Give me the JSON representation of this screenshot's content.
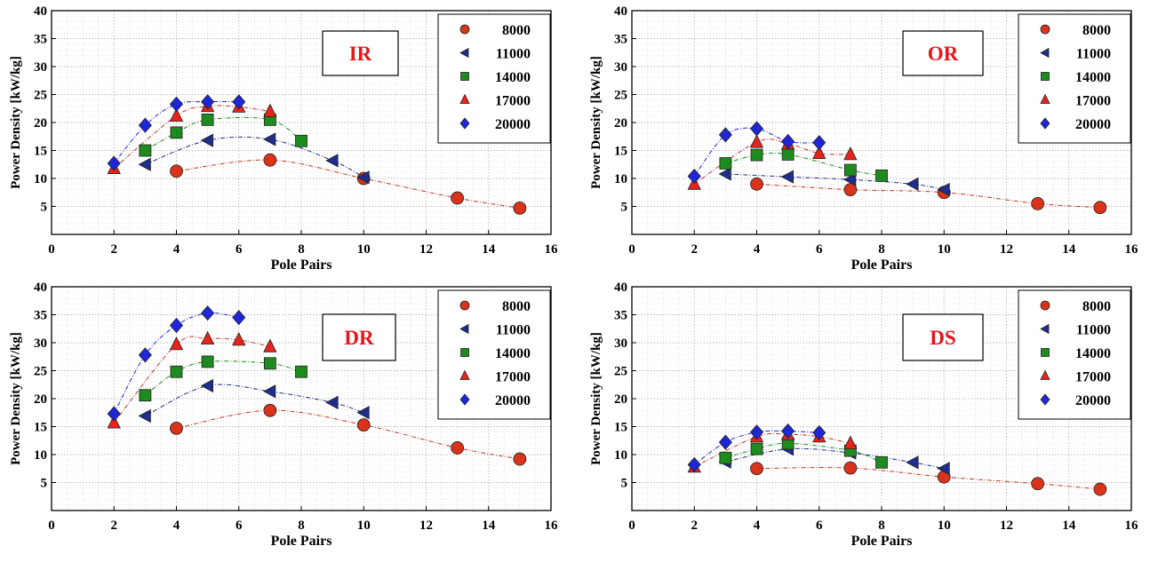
{
  "chart_data": [
    {
      "type": "scatter",
      "title": "IR",
      "xlabel": "Pole Pairs",
      "ylabel": "Power Density [kW/kg]",
      "xlim": [
        0,
        16
      ],
      "ylim": [
        0,
        40
      ],
      "xticks": [
        "0",
        "2",
        "4",
        "6",
        "8",
        "10",
        "12",
        "14",
        "16"
      ],
      "yticks": [
        "5",
        "10",
        "15",
        "20",
        "25",
        "30",
        "35",
        "40"
      ],
      "grid": true,
      "legend_position": "top-right",
      "series": [
        {
          "name": "8000",
          "marker": "circle",
          "color": "#d9341b",
          "line_color": "#c0392b",
          "points": [
            [
              4,
              11.3
            ],
            [
              7,
              13.3
            ],
            [
              10,
              10
            ],
            [
              13,
              6.5
            ],
            [
              15,
              4.7
            ]
          ]
        },
        {
          "name": "11000",
          "marker": "triangle-left",
          "color": "#1f2d8c",
          "line_color": "#1f2d8c",
          "points": [
            [
              3,
              12.5
            ],
            [
              5,
              16.8
            ],
            [
              7,
              17
            ],
            [
              9,
              13.2
            ],
            [
              10,
              10.2
            ]
          ]
        },
        {
          "name": "14000",
          "marker": "square",
          "color": "#1e8b1e",
          "line_color": "#1e8b1e",
          "points": [
            [
              3,
              15
            ],
            [
              4,
              18.2
            ],
            [
              5,
              20.5
            ],
            [
              7,
              20.5
            ],
            [
              8,
              16.7
            ]
          ]
        },
        {
          "name": "17000",
          "marker": "triangle-up",
          "color": "#e8231c",
          "line_color": "#c0392b",
          "points": [
            [
              2,
              11.8
            ],
            [
              4,
              21.2
            ],
            [
              5,
              22.9
            ],
            [
              6,
              22.8
            ],
            [
              7,
              22
            ]
          ]
        },
        {
          "name": "20000",
          "marker": "diamond",
          "color": "#1f26d8",
          "line_color": "#1f26d8",
          "points": [
            [
              2,
              12.7
            ],
            [
              3,
              19.5
            ],
            [
              4,
              23.3
            ],
            [
              5,
              23.7
            ],
            [
              6,
              23.7
            ]
          ]
        }
      ]
    },
    {
      "type": "scatter",
      "title": "OR",
      "xlabel": "Pole Pairs",
      "ylabel": "Power Density [kW/kg]",
      "xlim": [
        0,
        16
      ],
      "ylim": [
        0,
        40
      ],
      "xticks": [
        "0",
        "2",
        "4",
        "6",
        "8",
        "10",
        "12",
        "14",
        "16"
      ],
      "yticks": [
        "5",
        "10",
        "15",
        "20",
        "25",
        "30",
        "35",
        "40"
      ],
      "grid": true,
      "legend_position": "top-right",
      "series": [
        {
          "name": "8000",
          "marker": "circle",
          "color": "#d9341b",
          "line_color": "#c0392b",
          "points": [
            [
              4,
              9
            ],
            [
              7,
              8
            ],
            [
              10,
              7.5
            ],
            [
              13,
              5.5
            ],
            [
              15,
              4.8
            ]
          ]
        },
        {
          "name": "11000",
          "marker": "triangle-left",
          "color": "#1f2d8c",
          "line_color": "#1f2d8c",
          "points": [
            [
              3,
              10.8
            ],
            [
              5,
              10.3
            ],
            [
              7,
              9.8
            ],
            [
              9,
              9
            ],
            [
              10,
              8
            ]
          ]
        },
        {
          "name": "14000",
          "marker": "square",
          "color": "#1e8b1e",
          "line_color": "#1e8b1e",
          "points": [
            [
              3,
              12.7
            ],
            [
              4,
              14.2
            ],
            [
              5,
              14.3
            ],
            [
              7,
              11.5
            ],
            [
              8,
              10.5
            ]
          ]
        },
        {
          "name": "17000",
          "marker": "triangle-up",
          "color": "#e8231c",
          "line_color": "#c0392b",
          "points": [
            [
              2,
              9
            ],
            [
              4,
              16.5
            ],
            [
              5,
              16.2
            ],
            [
              6,
              14.5
            ],
            [
              7,
              14.3
            ]
          ]
        },
        {
          "name": "20000",
          "marker": "diamond",
          "color": "#1f26d8",
          "line_color": "#1f26d8",
          "points": [
            [
              2,
              10.4
            ],
            [
              3,
              17.8
            ],
            [
              4,
              18.9
            ],
            [
              5,
              16.6
            ],
            [
              6,
              16.4
            ]
          ]
        }
      ]
    },
    {
      "type": "scatter",
      "title": "DR",
      "xlabel": "Pole Pairs",
      "ylabel": "Power Density [kW/kg]",
      "xlim": [
        0,
        16
      ],
      "ylim": [
        0,
        40
      ],
      "xticks": [
        "0",
        "2",
        "4",
        "6",
        "8",
        "10",
        "12",
        "14",
        "16"
      ],
      "yticks": [
        "5",
        "10",
        "15",
        "20",
        "25",
        "30",
        "35",
        "40"
      ],
      "grid": true,
      "legend_position": "top-right",
      "series": [
        {
          "name": "8000",
          "marker": "circle",
          "color": "#d9341b",
          "line_color": "#c0392b",
          "points": [
            [
              4,
              14.7
            ],
            [
              7,
              17.9
            ],
            [
              10,
              15.3
            ],
            [
              13,
              11.2
            ],
            [
              15,
              9.2
            ]
          ]
        },
        {
          "name": "11000",
          "marker": "triangle-left",
          "color": "#1f2d8c",
          "line_color": "#1f2d8c",
          "points": [
            [
              3,
              16.9
            ],
            [
              5,
              22.3
            ],
            [
              7,
              21.3
            ],
            [
              9,
              19.3
            ],
            [
              10,
              17.5
            ]
          ]
        },
        {
          "name": "14000",
          "marker": "square",
          "color": "#1e8b1e",
          "line_color": "#1e8b1e",
          "points": [
            [
              3,
              20.6
            ],
            [
              4,
              24.8
            ],
            [
              5,
              26.6
            ],
            [
              7,
              26.3
            ],
            [
              8,
              24.8
            ]
          ]
        },
        {
          "name": "17000",
          "marker": "triangle-up",
          "color": "#e8231c",
          "line_color": "#c0392b",
          "points": [
            [
              2,
              15.7
            ],
            [
              4,
              29.7
            ],
            [
              5,
              30.7
            ],
            [
              6,
              30.5
            ],
            [
              7,
              29.3
            ]
          ]
        },
        {
          "name": "20000",
          "marker": "diamond",
          "color": "#1f26d8",
          "line_color": "#1f26d8",
          "points": [
            [
              2,
              17.3
            ],
            [
              3,
              27.8
            ],
            [
              4,
              33.1
            ],
            [
              5,
              35.3
            ],
            [
              6,
              34.5
            ]
          ]
        }
      ]
    },
    {
      "type": "scatter",
      "title": "DS",
      "xlabel": "Pole Pairs",
      "ylabel": "Power Density [kW/kg]",
      "xlim": [
        0,
        16
      ],
      "ylim": [
        0,
        40
      ],
      "xticks": [
        "0",
        "2",
        "4",
        "6",
        "8",
        "10",
        "12",
        "14",
        "16"
      ],
      "yticks": [
        "5",
        "10",
        "15",
        "20",
        "25",
        "30",
        "35",
        "40"
      ],
      "grid": true,
      "legend_position": "top-right",
      "series": [
        {
          "name": "8000",
          "marker": "circle",
          "color": "#d9341b",
          "line_color": "#c0392b",
          "points": [
            [
              4,
              7.5
            ],
            [
              7,
              7.6
            ],
            [
              10,
              6
            ],
            [
              13,
              4.8
            ],
            [
              15,
              3.8
            ]
          ]
        },
        {
          "name": "11000",
          "marker": "triangle-left",
          "color": "#1f2d8c",
          "line_color": "#1f2d8c",
          "points": [
            [
              3,
              8.7
            ],
            [
              5,
              11
            ],
            [
              7,
              10.3
            ],
            [
              9,
              8.6
            ],
            [
              10,
              7.5
            ]
          ]
        },
        {
          "name": "14000",
          "marker": "square",
          "color": "#1e8b1e",
          "line_color": "#1e8b1e",
          "points": [
            [
              3,
              9.4
            ],
            [
              4,
              11
            ],
            [
              5,
              12
            ],
            [
              7,
              10.7
            ],
            [
              8,
              8.6
            ]
          ]
        },
        {
          "name": "17000",
          "marker": "triangle-up",
          "color": "#e8231c",
          "line_color": "#c0392b",
          "points": [
            [
              2,
              7.8
            ],
            [
              4,
              13.2
            ],
            [
              5,
              13.6
            ],
            [
              6,
              13.2
            ],
            [
              7,
              12
            ]
          ]
        },
        {
          "name": "20000",
          "marker": "diamond",
          "color": "#1f26d8",
          "line_color": "#1f26d8",
          "points": [
            [
              2,
              8.2
            ],
            [
              3,
              12.2
            ],
            [
              4,
              14
            ],
            [
              5,
              14.2
            ],
            [
              6,
              13.9
            ]
          ]
        }
      ]
    }
  ]
}
